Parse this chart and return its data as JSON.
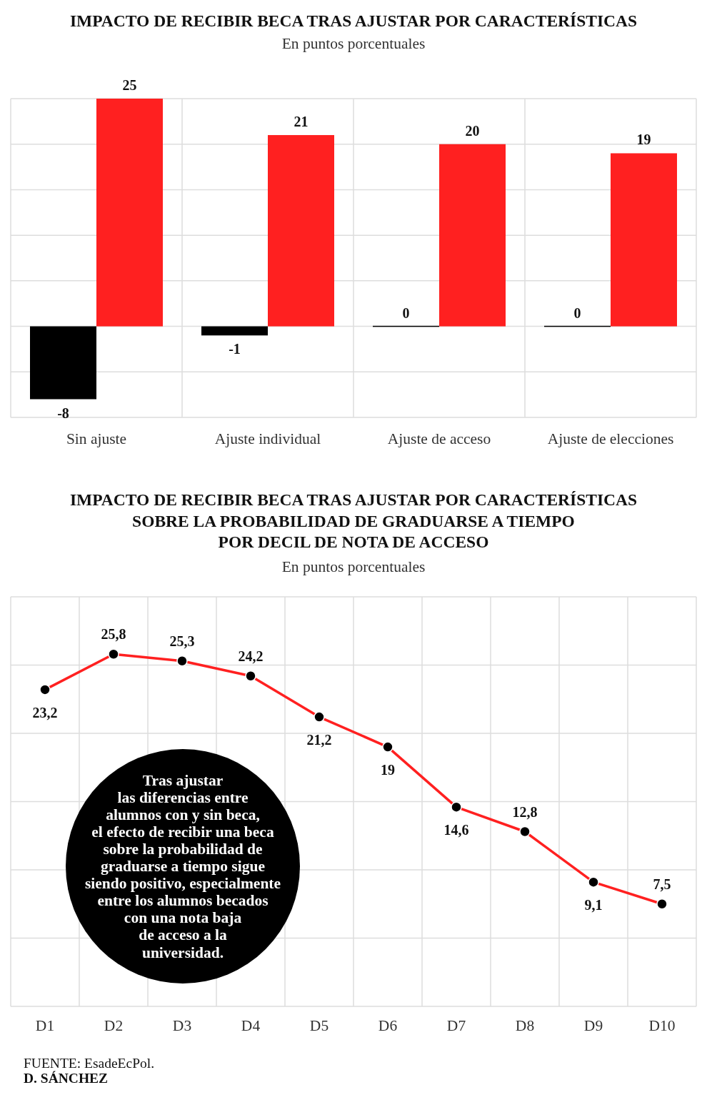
{
  "chart_data": [
    {
      "type": "bar",
      "title": "IMPACTO DE RECIBIR BECA TRAS AJUSTAR POR CARACTERÍSTICAS",
      "subtitle": "En puntos porcentuales",
      "categories": [
        "Sin ajuste",
        "Ajuste individual",
        "Ajuste de acceso",
        "Ajuste de elecciones"
      ],
      "series": [
        {
          "color": "#000000",
          "values": [
            -8,
            -1,
            0,
            0
          ]
        },
        {
          "color": "#ff2020",
          "values": [
            25,
            21,
            20,
            19
          ]
        }
      ],
      "ylim": [
        -10,
        25
      ],
      "yticks": [
        {
          "value": -10,
          "label": null
        },
        {
          "value": -5,
          "label": null
        },
        {
          "value": 0,
          "label": null
        },
        {
          "value": 5,
          "label": null
        },
        {
          "value": 10,
          "label": null
        },
        {
          "value": 15,
          "label": null
        },
        {
          "value": 20,
          "label": null
        },
        {
          "value": 25,
          "label": null
        }
      ],
      "grid": true,
      "tick_labels": "x",
      "data_labels": true
    },
    {
      "type": "line",
      "title": "IMPACTO DE RECIBIR BECA TRAS AJUSTAR POR CARACTERÍSTICAS\nSOBRE LA PROBABILIDAD DE GRADUARSE A TIEMPO\nPOR DECIL DE NOTA DE ACCESO",
      "subtitle": "En puntos porcentuales",
      "categories": [
        "D1",
        "D2",
        "D3",
        "D4",
        "D5",
        "D6",
        "D7",
        "D8",
        "D9",
        "D10"
      ],
      "values": [
        23.2,
        25.8,
        25.3,
        24.2,
        21.2,
        19,
        14.6,
        12.8,
        9.1,
        7.5
      ],
      "value_labels": [
        "23,2",
        "25,8",
        "25,3",
        "24,2",
        "21,2",
        "19",
        "14,6",
        "12,8",
        "9,1",
        "7,5"
      ],
      "color": "#ff2020",
      "ylim": [
        0,
        30
      ],
      "yticks": [
        {
          "value": 0,
          "label": null
        },
        {
          "value": 5,
          "label": null
        },
        {
          "value": 10,
          "label": null
        },
        {
          "value": 15,
          "label": null
        },
        {
          "value": 20,
          "label": null
        },
        {
          "value": 25,
          "label": null
        },
        {
          "value": 30,
          "label": null
        }
      ],
      "grid": true,
      "tick_labels": "x",
      "marker": "circle",
      "annotations": [
        "Tras ajustar\nlas diferencias entre\nalumnos con y sin beca,\nel efecto de recibir una beca\nsobre la probabilidad de\ngraduarse a tiempo sigue\nsiendo positivo, especialmente\nentre los alumnos becados\ncon una nota baja\nde acceso a la\nuniversidad.",
        "FUENTE: EsadeEcPol.",
        "D. SÁNCHEZ"
      ]
    }
  ]
}
